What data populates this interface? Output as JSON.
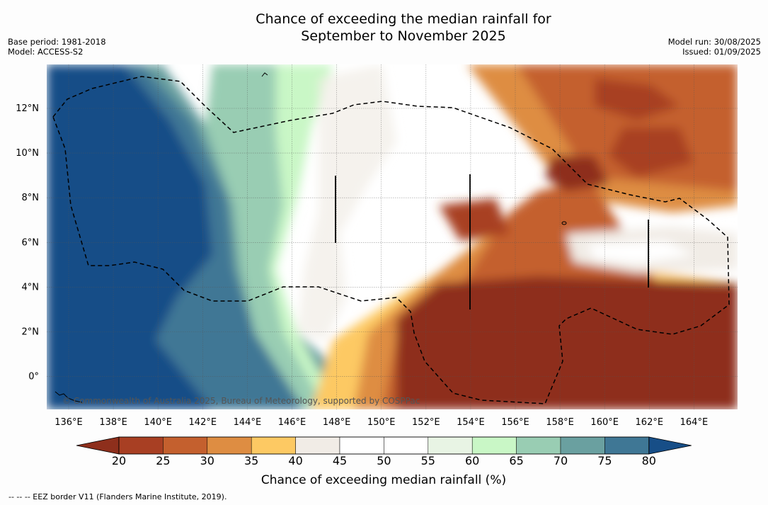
{
  "title": {
    "line1": "Chance of exceeding the median rainfall for",
    "line2": "September to November 2025"
  },
  "meta_left": {
    "base_period": "Base period: 1981-2018",
    "model": "Model: ACCESS-S2"
  },
  "meta_right": {
    "model_run": "Model run: 30/08/2025",
    "issued": "Issued: 01/09/2025"
  },
  "map": {
    "x_ticks": [
      "136°E",
      "138°E",
      "140°E",
      "142°E",
      "144°E",
      "146°E",
      "148°E",
      "150°E",
      "152°E",
      "154°E",
      "156°E",
      "158°E",
      "160°E",
      "162°E",
      "164°E"
    ],
    "y_ticks": [
      "12°N",
      "10°N",
      "8°N",
      "6°N",
      "4°N",
      "2°N",
      "0°"
    ],
    "copyright": "© Commonwealth of Australia 2025, Bureau of Meteorology, supported by COSPPac",
    "ocean_legend_note": "EEZ border"
  },
  "colorbar": {
    "ticks": [
      "20",
      "25",
      "30",
      "35",
      "40",
      "45",
      "50",
      "55",
      "60",
      "65",
      "70",
      "75",
      "80"
    ],
    "colors": [
      "#8e2f1c",
      "#a83f23",
      "#c4602e",
      "#de8d42",
      "#fdc963",
      "#f1ece6",
      "#ffffff",
      "#ffffff",
      "#e8f4e4",
      "#c9f7c6",
      "#99cdb3",
      "#6aa0a0",
      "#3f7795",
      "#174e87"
    ],
    "title": "Chance of exceeding median rainfall (%)"
  },
  "footer": "--  --  -- EEZ border V11 (Flanders Marine Institute, 2019)."
}
